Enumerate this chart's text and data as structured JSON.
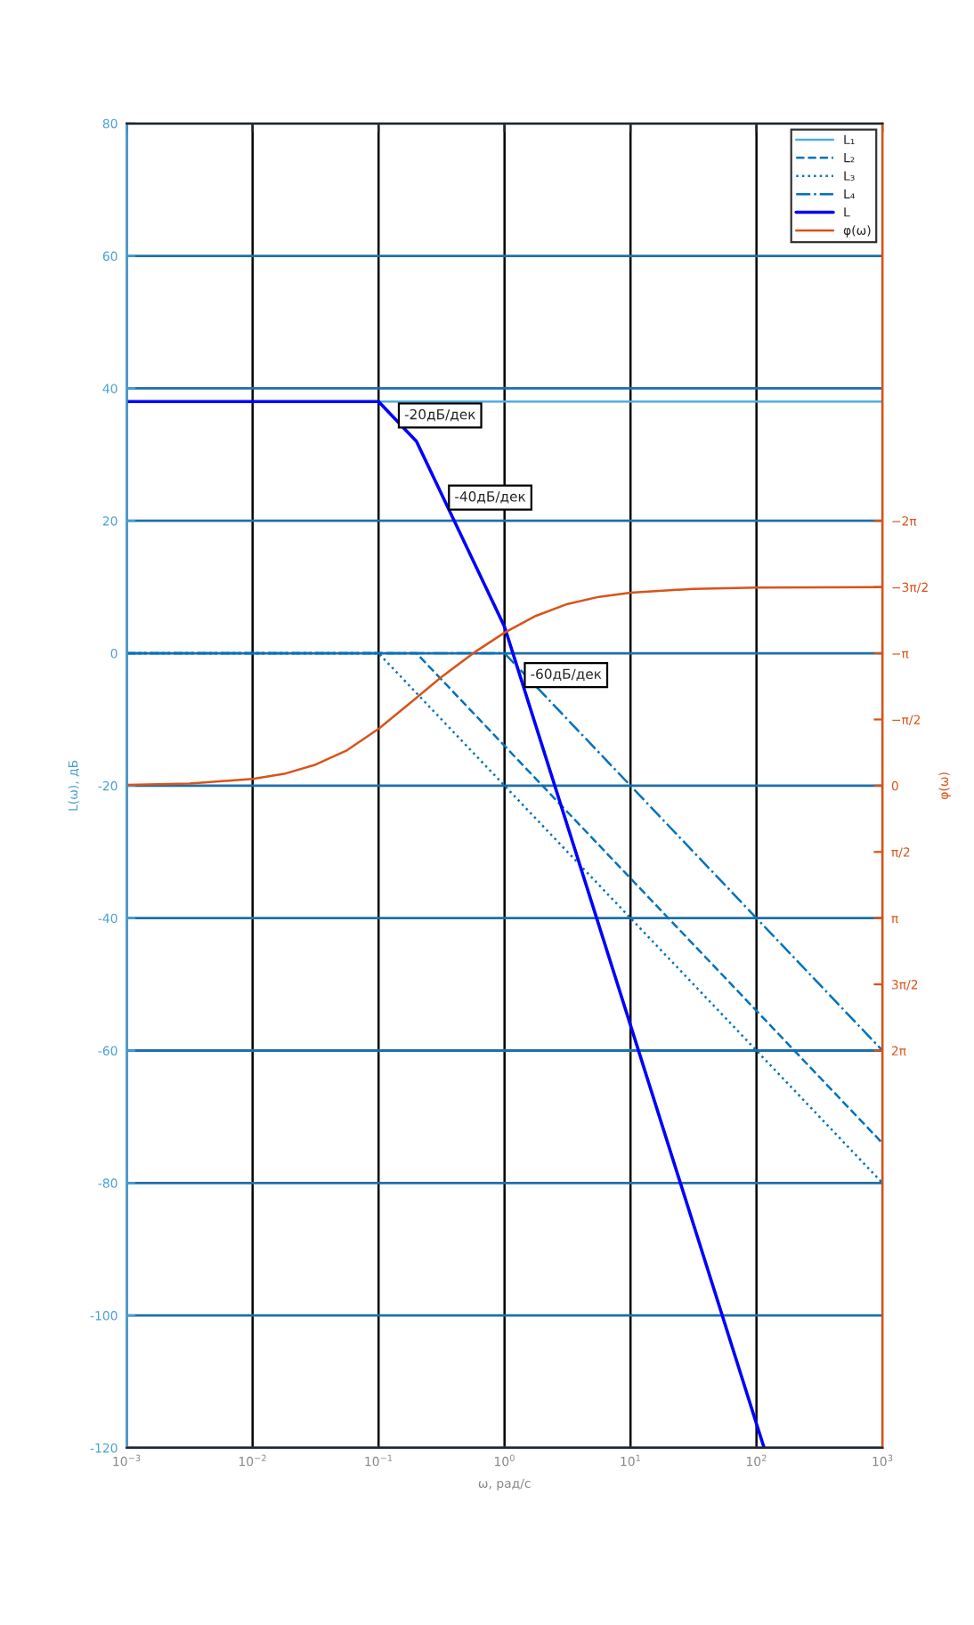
{
  "chart_data": {
    "type": "line",
    "xlabel": "ω, рад/с",
    "ylabel": "L(ω), дБ",
    "y2label": "φ(ω)",
    "log": "x",
    "grid": true,
    "legend": "top right",
    "xlim": [
      0.001,
      1000
    ],
    "xticks": [
      {
        "value": 0.001,
        "label": "10$^{−3}$"
      },
      {
        "value": 0.01,
        "label": "10$^{−2}$"
      },
      {
        "value": 0.1,
        "label": "10$^{−1}$"
      },
      {
        "value": 1,
        "label": "10$^{0}$"
      },
      {
        "value": 10,
        "label": "10$^{1}$"
      },
      {
        "value": 100,
        "label": "10$^{2}$"
      },
      {
        "value": 1000,
        "label": "10$^{3}$"
      }
    ],
    "ylim": [
      -120,
      80
    ],
    "yticks": [
      -120,
      -100,
      -80,
      -60,
      -40,
      -20,
      0,
      20,
      40,
      60,
      80
    ],
    "y2lim": [
      15.708,
      -15.708
    ],
    "y2ticks": [
      {
        "value": -6.2832,
        "label": "−2π"
      },
      {
        "value": -4.7124,
        "label": "−3π/2"
      },
      {
        "value": -3.1416,
        "label": "−π"
      },
      {
        "value": -1.5708,
        "label": "−π/2"
      },
      {
        "value": 0,
        "label": "0"
      },
      {
        "value": 1.5708,
        "label": "π/2"
      },
      {
        "value": 3.1416,
        "label": "π"
      },
      {
        "value": 4.7124,
        "label": "3π/2"
      },
      {
        "value": 6.2832,
        "label": "2π"
      }
    ],
    "series": [
      {
        "name": "L₁",
        "color": "#4daee0",
        "line_style": "solid",
        "x": [
          0.001,
          1000
        ],
        "values": [
          38,
          38
        ]
      },
      {
        "name": "L₂",
        "color": "#0072bd",
        "line_style": "dashed",
        "x": [
          0.001,
          0.2,
          1000
        ],
        "values": [
          0,
          0,
          -74
        ]
      },
      {
        "name": "L₃",
        "color": "#0072bd",
        "line_style": "dotted",
        "x": [
          0.001,
          0.1,
          1000
        ],
        "values": [
          0,
          0,
          -80
        ]
      },
      {
        "name": "L₄",
        "color": "#0072bd",
        "line_style": "dashdot",
        "x": [
          0.001,
          1,
          1000
        ],
        "values": [
          0,
          0,
          -60
        ]
      },
      {
        "name": "L",
        "color": "#0000ff",
        "line_style": "solid",
        "x": [
          0.001,
          0.1,
          0.2,
          1,
          115
        ],
        "values": [
          38,
          38,
          32,
          4,
          -120
        ]
      },
      {
        "name": "φ(ω)",
        "color": "#d95319",
        "line_style": "solid",
        "axis": "y2",
        "x": [
          0.001,
          0.00316,
          0.01,
          0.0178,
          0.0316,
          0.0562,
          0.1,
          0.178,
          0.316,
          0.562,
          1,
          1.778,
          3.16,
          5.62,
          10,
          31.6,
          100,
          1000
        ],
        "values": [
          -0.02,
          -0.05,
          -0.16,
          -0.28,
          -0.5,
          -0.84,
          -1.35,
          -1.96,
          -2.58,
          -3.14,
          -3.63,
          -4.03,
          -4.31,
          -4.48,
          -4.58,
          -4.67,
          -4.7,
          -4.71
        ]
      }
    ],
    "annotations": [
      {
        "text": "-20дБ/дек",
        "x": 0.16,
        "y": 35.9
      },
      {
        "text": "-40дБ/дек",
        "x": 0.4,
        "y": 23.5
      },
      {
        "text": "-60дБ/дек",
        "x": 1.6,
        "y": -3.3
      }
    ]
  }
}
